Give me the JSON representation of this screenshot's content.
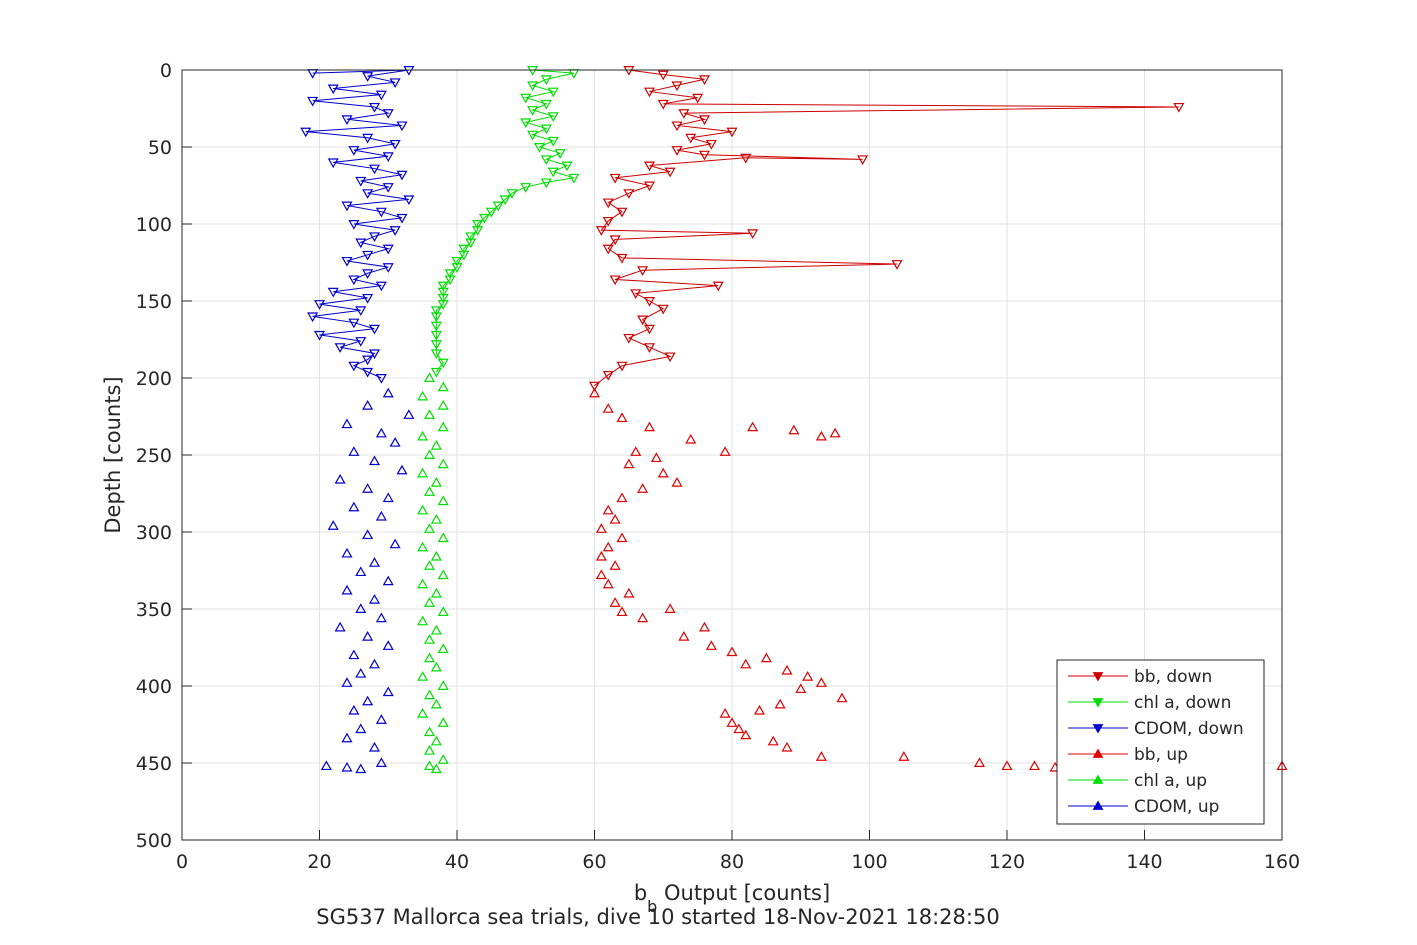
{
  "chart_data": {
    "type": "scatter",
    "title": "",
    "footer": "SG537 Mallorca sea trials, dive 10 started 18-Nov-2021 18:28:50",
    "xlabel": "b",
    "xlabel_sub": "b",
    "xlabel_rest": " Output [counts]",
    "ylabel": "Depth [counts]",
    "xlim": [
      0,
      160
    ],
    "ylim": [
      0,
      500
    ],
    "y_reversed": true,
    "grid": true,
    "legend_position": "bottom-right",
    "x_ticks": [
      "0",
      "20",
      "40",
      "60",
      "80",
      "100",
      "120",
      "140",
      "160"
    ],
    "y_ticks": [
      "0",
      "50",
      "100",
      "150",
      "200",
      "250",
      "300",
      "350",
      "400",
      "450",
      "500"
    ],
    "series": [
      {
        "name": "bb, down",
        "color": "#cc0000",
        "marker": "triangle-down",
        "connected": true,
        "points": [
          [
            65,
            0
          ],
          [
            70,
            3
          ],
          [
            76,
            6
          ],
          [
            72,
            10
          ],
          [
            68,
            14
          ],
          [
            75,
            18
          ],
          [
            70,
            22
          ],
          [
            145,
            24
          ],
          [
            73,
            28
          ],
          [
            76,
            32
          ],
          [
            72,
            36
          ],
          [
            80,
            40
          ],
          [
            74,
            44
          ],
          [
            77,
            48
          ],
          [
            72,
            52
          ],
          [
            76,
            55
          ],
          [
            99,
            58
          ],
          [
            82,
            57
          ],
          [
            68,
            62
          ],
          [
            71,
            66
          ],
          [
            63,
            70
          ],
          [
            68,
            75
          ],
          [
            65,
            80
          ],
          [
            62,
            86
          ],
          [
            64,
            92
          ],
          [
            62,
            98
          ],
          [
            61,
            104
          ],
          [
            83,
            106
          ],
          [
            63,
            110
          ],
          [
            62,
            116
          ],
          [
            64,
            122
          ],
          [
            104,
            126
          ],
          [
            67,
            130
          ],
          [
            63,
            136
          ],
          [
            78,
            140
          ],
          [
            66,
            145
          ],
          [
            68,
            150
          ],
          [
            70,
            155
          ],
          [
            67,
            162
          ],
          [
            68,
            168
          ],
          [
            65,
            174
          ],
          [
            68,
            180
          ],
          [
            71,
            186
          ],
          [
            64,
            192
          ],
          [
            62,
            198
          ],
          [
            60,
            205
          ]
        ]
      },
      {
        "name": "chl a, down",
        "color": "#00dd00",
        "marker": "triangle-down",
        "connected": true,
        "points": [
          [
            51,
            0
          ],
          [
            57,
            2
          ],
          [
            53,
            6
          ],
          [
            51,
            10
          ],
          [
            54,
            14
          ],
          [
            50,
            18
          ],
          [
            53,
            22
          ],
          [
            51,
            26
          ],
          [
            54,
            30
          ],
          [
            50,
            34
          ],
          [
            53,
            38
          ],
          [
            51,
            42
          ],
          [
            54,
            46
          ],
          [
            52,
            50
          ],
          [
            55,
            54
          ],
          [
            53,
            58
          ],
          [
            56,
            62
          ],
          [
            54,
            66
          ],
          [
            57,
            70
          ],
          [
            53,
            73
          ],
          [
            50,
            76
          ],
          [
            48,
            80
          ],
          [
            47,
            84
          ],
          [
            46,
            88
          ],
          [
            45,
            92
          ],
          [
            44,
            96
          ],
          [
            43,
            100
          ],
          [
            43,
            104
          ],
          [
            42,
            108
          ],
          [
            42,
            112
          ],
          [
            41,
            116
          ],
          [
            41,
            120
          ],
          [
            40,
            124
          ],
          [
            40,
            128
          ],
          [
            39,
            132
          ],
          [
            39,
            136
          ],
          [
            38,
            140
          ],
          [
            38,
            144
          ],
          [
            38,
            148
          ],
          [
            38,
            152
          ],
          [
            37,
            156
          ],
          [
            37,
            160
          ],
          [
            37,
            166
          ],
          [
            37,
            172
          ],
          [
            37,
            178
          ],
          [
            37,
            184
          ],
          [
            38,
            190
          ],
          [
            37,
            196
          ]
        ]
      },
      {
        "name": "CDOM, down",
        "color": "#0000cc",
        "marker": "triangle-down",
        "connected": true,
        "points": [
          [
            19,
            2
          ],
          [
            33,
            0
          ],
          [
            27,
            4
          ],
          [
            31,
            8
          ],
          [
            22,
            12
          ],
          [
            29,
            16
          ],
          [
            19,
            20
          ],
          [
            28,
            24
          ],
          [
            30,
            28
          ],
          [
            24,
            32
          ],
          [
            32,
            36
          ],
          [
            18,
            40
          ],
          [
            27,
            44
          ],
          [
            31,
            48
          ],
          [
            25,
            52
          ],
          [
            30,
            56
          ],
          [
            22,
            60
          ],
          [
            28,
            64
          ],
          [
            32,
            68
          ],
          [
            26,
            72
          ],
          [
            30,
            76
          ],
          [
            27,
            80
          ],
          [
            33,
            84
          ],
          [
            24,
            88
          ],
          [
            29,
            92
          ],
          [
            32,
            96
          ],
          [
            25,
            100
          ],
          [
            31,
            104
          ],
          [
            28,
            108
          ],
          [
            26,
            112
          ],
          [
            30,
            116
          ],
          [
            27,
            120
          ],
          [
            24,
            124
          ],
          [
            30,
            128
          ],
          [
            27,
            132
          ],
          [
            25,
            136
          ],
          [
            29,
            140
          ],
          [
            22,
            144
          ],
          [
            27,
            148
          ],
          [
            20,
            152
          ],
          [
            26,
            156
          ],
          [
            19,
            160
          ],
          [
            25,
            164
          ],
          [
            28,
            168
          ],
          [
            20,
            172
          ],
          [
            26,
            176
          ],
          [
            23,
            180
          ],
          [
            28,
            184
          ],
          [
            27,
            188
          ],
          [
            25,
            192
          ],
          [
            27,
            196
          ],
          [
            29,
            200
          ]
        ]
      },
      {
        "name": "bb, up",
        "color": "#dd0000",
        "marker": "triangle-up",
        "connected": false,
        "points": [
          [
            60,
            210
          ],
          [
            62,
            220
          ],
          [
            64,
            226
          ],
          [
            68,
            232
          ],
          [
            83,
            232
          ],
          [
            89,
            234
          ],
          [
            95,
            236
          ],
          [
            93,
            238
          ],
          [
            74,
            240
          ],
          [
            66,
            248
          ],
          [
            69,
            252
          ],
          [
            79,
            248
          ],
          [
            65,
            256
          ],
          [
            70,
            262
          ],
          [
            72,
            268
          ],
          [
            67,
            272
          ],
          [
            64,
            278
          ],
          [
            62,
            286
          ],
          [
            63,
            292
          ],
          [
            61,
            298
          ],
          [
            64,
            304
          ],
          [
            62,
            310
          ],
          [
            61,
            316
          ],
          [
            63,
            322
          ],
          [
            61,
            328
          ],
          [
            62,
            334
          ],
          [
            65,
            340
          ],
          [
            63,
            346
          ],
          [
            64,
            352
          ],
          [
            67,
            356
          ],
          [
            71,
            350
          ],
          [
            76,
            362
          ],
          [
            73,
            368
          ],
          [
            77,
            374
          ],
          [
            80,
            378
          ],
          [
            85,
            382
          ],
          [
            82,
            386
          ],
          [
            88,
            390
          ],
          [
            91,
            394
          ],
          [
            93,
            398
          ],
          [
            90,
            402
          ],
          [
            96,
            408
          ],
          [
            87,
            412
          ],
          [
            84,
            416
          ],
          [
            79,
            418
          ],
          [
            80,
            424
          ],
          [
            81,
            428
          ],
          [
            82,
            432
          ],
          [
            86,
            436
          ],
          [
            88,
            440
          ],
          [
            93,
            446
          ],
          [
            105,
            446
          ],
          [
            116,
            450
          ],
          [
            120,
            452
          ],
          [
            124,
            452
          ],
          [
            127,
            453
          ],
          [
            160,
            452
          ]
        ]
      },
      {
        "name": "chl a, up",
        "color": "#00dd00",
        "marker": "triangle-up",
        "connected": false,
        "points": [
          [
            36,
            200
          ],
          [
            38,
            206
          ],
          [
            35,
            212
          ],
          [
            38,
            218
          ],
          [
            36,
            224
          ],
          [
            38,
            232
          ],
          [
            35,
            238
          ],
          [
            37,
            244
          ],
          [
            36,
            250
          ],
          [
            38,
            256
          ],
          [
            35,
            262
          ],
          [
            37,
            268
          ],
          [
            36,
            274
          ],
          [
            38,
            280
          ],
          [
            35,
            286
          ],
          [
            37,
            292
          ],
          [
            36,
            298
          ],
          [
            38,
            304
          ],
          [
            35,
            310
          ],
          [
            37,
            316
          ],
          [
            36,
            322
          ],
          [
            38,
            328
          ],
          [
            35,
            334
          ],
          [
            37,
            340
          ],
          [
            36,
            346
          ],
          [
            38,
            352
          ],
          [
            35,
            358
          ],
          [
            37,
            364
          ],
          [
            36,
            370
          ],
          [
            38,
            376
          ],
          [
            36,
            382
          ],
          [
            37,
            388
          ],
          [
            35,
            394
          ],
          [
            38,
            400
          ],
          [
            36,
            406
          ],
          [
            37,
            412
          ],
          [
            35,
            418
          ],
          [
            38,
            424
          ],
          [
            36,
            430
          ],
          [
            37,
            436
          ],
          [
            36,
            442
          ],
          [
            38,
            448
          ],
          [
            36,
            452
          ],
          [
            37,
            454
          ]
        ]
      },
      {
        "name": "CDOM, up",
        "color": "#0000cc",
        "marker": "triangle-up",
        "connected": false,
        "points": [
          [
            30,
            210
          ],
          [
            27,
            218
          ],
          [
            33,
            224
          ],
          [
            24,
            230
          ],
          [
            29,
            236
          ],
          [
            31,
            242
          ],
          [
            25,
            248
          ],
          [
            28,
            254
          ],
          [
            32,
            260
          ],
          [
            23,
            266
          ],
          [
            27,
            272
          ],
          [
            30,
            278
          ],
          [
            25,
            284
          ],
          [
            29,
            290
          ],
          [
            22,
            296
          ],
          [
            27,
            302
          ],
          [
            31,
            308
          ],
          [
            24,
            314
          ],
          [
            28,
            320
          ],
          [
            26,
            326
          ],
          [
            30,
            332
          ],
          [
            24,
            338
          ],
          [
            28,
            344
          ],
          [
            26,
            350
          ],
          [
            29,
            356
          ],
          [
            23,
            362
          ],
          [
            27,
            368
          ],
          [
            30,
            374
          ],
          [
            25,
            380
          ],
          [
            28,
            386
          ],
          [
            26,
            392
          ],
          [
            24,
            398
          ],
          [
            30,
            404
          ],
          [
            27,
            410
          ],
          [
            25,
            416
          ],
          [
            29,
            422
          ],
          [
            26,
            428
          ],
          [
            24,
            434
          ],
          [
            28,
            440
          ],
          [
            21,
            452
          ],
          [
            24,
            453
          ],
          [
            26,
            454
          ],
          [
            29,
            450
          ]
        ]
      }
    ]
  }
}
